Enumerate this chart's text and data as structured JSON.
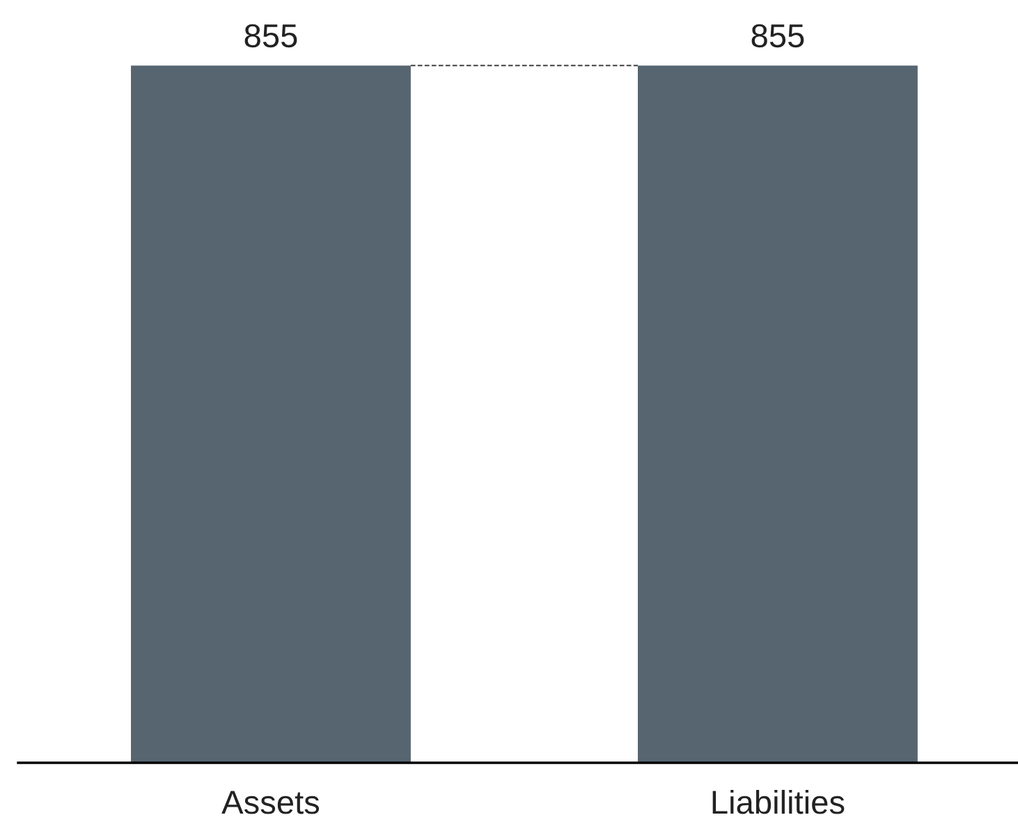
{
  "chart_data": {
    "type": "bar",
    "categories": [
      "Assets",
      "Liabilities"
    ],
    "values": [
      855,
      855
    ],
    "color": "#56656f",
    "data_labels": true,
    "ref_lines": [
      {
        "axis": "y",
        "value": 855,
        "color": "#555555",
        "line_style": "dashed"
      }
    ],
    "grid": false,
    "legend": false
  }
}
